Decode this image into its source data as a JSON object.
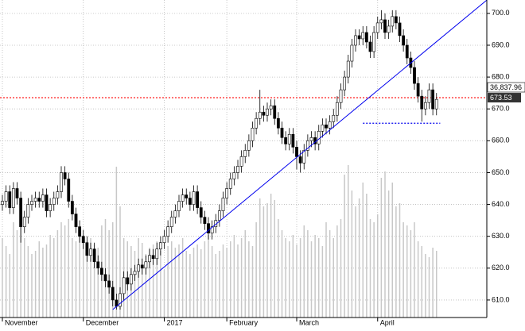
{
  "chart_data": {
    "type": "candlestick",
    "categories": [
      "November",
      null,
      null,
      null,
      null,
      null,
      null,
      null,
      null,
      null,
      null,
      null,
      null,
      null,
      null,
      null,
      null,
      null,
      null,
      null,
      null,
      null,
      "December",
      null,
      null,
      null,
      null,
      null,
      null,
      null,
      null,
      null,
      null,
      null,
      null,
      null,
      null,
      null,
      null,
      null,
      null,
      null,
      null,
      null,
      "2017",
      null,
      null,
      null,
      null,
      null,
      null,
      null,
      null,
      null,
      null,
      null,
      null,
      null,
      null,
      null,
      null,
      "February",
      null,
      null,
      null,
      null,
      null,
      null,
      null,
      null,
      null,
      null,
      null,
      null,
      null,
      null,
      null,
      null,
      null,
      null,
      "March",
      null,
      null,
      null,
      null,
      null,
      null,
      null,
      null,
      null,
      null,
      null,
      null,
      null,
      null,
      null,
      null,
      null,
      null,
      null,
      null,
      null,
      "April",
      null,
      null,
      null,
      null,
      null,
      null,
      null,
      null,
      null,
      null,
      null,
      null,
      null,
      null,
      null,
      null
    ],
    "open": [
      640,
      641,
      644,
      639,
      645,
      642,
      633,
      636,
      640,
      641,
      642,
      641,
      643,
      638,
      640,
      642,
      644,
      650,
      648,
      641,
      637,
      633,
      630,
      628,
      624,
      626,
      622,
      620,
      618,
      616,
      614,
      610,
      608,
      612,
      617,
      615,
      618,
      619,
      621,
      620,
      622,
      624,
      623,
      626,
      628,
      630,
      633,
      636,
      638,
      641,
      643,
      642,
      640,
      644,
      639,
      636,
      634,
      631,
      633,
      635,
      638,
      642,
      645,
      648,
      650,
      652,
      655,
      657,
      660,
      664,
      667,
      669,
      668,
      670,
      671,
      667,
      664,
      661,
      659,
      662,
      658,
      655,
      653,
      657,
      660,
      661,
      659,
      663,
      665,
      664,
      666,
      668,
      672,
      676,
      680,
      685,
      690,
      693,
      692,
      694,
      691,
      688,
      694,
      697,
      698,
      694,
      696,
      699,
      697,
      693,
      690,
      686,
      683,
      678,
      674,
      670,
      672,
      676,
      670
    ],
    "high": [
      643,
      646,
      646,
      647,
      647,
      644,
      638,
      642,
      643,
      644,
      644,
      645,
      645,
      642,
      644,
      646,
      652,
      652,
      650,
      643,
      639,
      635,
      632,
      630,
      628,
      628,
      624,
      622,
      620,
      618,
      616,
      612,
      614,
      619,
      619,
      620,
      621,
      623,
      623,
      624,
      626,
      626,
      628,
      630,
      632,
      635,
      638,
      640,
      643,
      645,
      645,
      644,
      646,
      646,
      641,
      638,
      636,
      635,
      637,
      640,
      644,
      647,
      650,
      652,
      654,
      657,
      659,
      662,
      666,
      669,
      676,
      671,
      672,
      673,
      673,
      669,
      666,
      663,
      664,
      664,
      660,
      657,
      659,
      662,
      663,
      663,
      665,
      667,
      667,
      668,
      670,
      674,
      678,
      682,
      687,
      692,
      695,
      695,
      696,
      696,
      693,
      696,
      699,
      701,
      700,
      698,
      701,
      701,
      699,
      695,
      692,
      688,
      685,
      680,
      676,
      674,
      678,
      678,
      675
    ],
    "low": [
      638,
      639,
      637,
      637,
      640,
      628,
      631,
      634,
      638,
      639,
      639,
      639,
      636,
      636,
      638,
      640,
      642,
      646,
      639,
      635,
      631,
      628,
      626,
      622,
      622,
      620,
      618,
      616,
      614,
      612,
      608,
      607,
      607,
      610,
      613,
      613,
      616,
      617,
      618,
      618,
      620,
      621,
      621,
      624,
      626,
      628,
      631,
      634,
      636,
      639,
      640,
      638,
      638,
      637,
      634,
      632,
      629,
      629,
      631,
      633,
      636,
      640,
      643,
      646,
      648,
      650,
      653,
      655,
      658,
      662,
      665,
      666,
      666,
      668,
      665,
      662,
      659,
      657,
      657,
      656,
      651,
      650,
      651,
      655,
      658,
      657,
      657,
      661,
      662,
      662,
      664,
      666,
      670,
      674,
      678,
      683,
      688,
      690,
      690,
      689,
      686,
      686,
      692,
      695,
      692,
      692,
      694,
      695,
      691,
      688,
      684,
      681,
      676,
      672,
      666,
      668,
      670,
      668,
      668
    ],
    "close": [
      641,
      644,
      639,
      645,
      642,
      633,
      636,
      640,
      641,
      642,
      641,
      643,
      638,
      640,
      642,
      644,
      650,
      648,
      641,
      637,
      633,
      630,
      628,
      624,
      626,
      622,
      620,
      618,
      616,
      614,
      610,
      608,
      612,
      617,
      615,
      618,
      619,
      621,
      620,
      622,
      624,
      623,
      626,
      628,
      630,
      633,
      636,
      638,
      641,
      643,
      642,
      640,
      644,
      639,
      636,
      634,
      631,
      633,
      635,
      638,
      642,
      645,
      648,
      650,
      652,
      655,
      657,
      660,
      664,
      667,
      669,
      668,
      670,
      671,
      667,
      664,
      661,
      659,
      662,
      658,
      655,
      653,
      657,
      660,
      661,
      659,
      663,
      665,
      664,
      666,
      668,
      672,
      676,
      680,
      685,
      690,
      693,
      692,
      694,
      691,
      688,
      694,
      697,
      698,
      694,
      696,
      699,
      697,
      693,
      690,
      686,
      683,
      678,
      674,
      670,
      672,
      676,
      670,
      673
    ],
    "volume": [
      50,
      45,
      40,
      60,
      55,
      70,
      50,
      45,
      40,
      42,
      48,
      44,
      46,
      52,
      50,
      55,
      60,
      58,
      62,
      50,
      48,
      55,
      52,
      48,
      50,
      46,
      44,
      58,
      62,
      55,
      60,
      95,
      70,
      50,
      48,
      45,
      42,
      50,
      47,
      40,
      44,
      46,
      48,
      42,
      30,
      45,
      48,
      44,
      46,
      50,
      42,
      40,
      44,
      46,
      43,
      48,
      52,
      45,
      40,
      42,
      46,
      44,
      48,
      52,
      46,
      50,
      55,
      48,
      45,
      60,
      75,
      70,
      72,
      78,
      74,
      62,
      55,
      50,
      48,
      52,
      46,
      50,
      58,
      55,
      48,
      52,
      50,
      45,
      60,
      55,
      50,
      58,
      62,
      90,
      96,
      80,
      70,
      75,
      85,
      78,
      62,
      60,
      65,
      88,
      92,
      80,
      85,
      70,
      72,
      60,
      58,
      55,
      60,
      48,
      45,
      40,
      38,
      44,
      42
    ],
    "volume_lim": [
      0,
      100
    ],
    "ylim": [
      604.5,
      704.2
    ],
    "yticks": [
      {
        "value": 610,
        "label": "610.0"
      },
      {
        "value": 620,
        "label": "620.0"
      },
      {
        "value": 630,
        "label": "630.0"
      },
      {
        "value": 640,
        "label": "640.0"
      },
      {
        "value": 650,
        "label": "650.0"
      },
      {
        "value": 660,
        "label": "660.0"
      },
      {
        "value": 670,
        "label": "670.0"
      },
      {
        "value": 680,
        "label": "680.0"
      },
      {
        "value": 690,
        "label": "690.0"
      },
      {
        "value": 700,
        "label": "700.0"
      }
    ],
    "grid": true,
    "up_color": "#ffffff",
    "down_color": "#000000",
    "volume_color": "#c8c8c8",
    "trendline": {
      "x": [
        30,
        131.7
      ],
      "y": [
        607,
        704.2
      ],
      "color": "#0000ee"
    },
    "support": {
      "value": 665.5,
      "from": 98,
      "to": 119,
      "color": "#0000ee"
    },
    "last_price": {
      "value": 673.53,
      "color": "#ff0000"
    },
    "index_label": "36,837.96"
  }
}
